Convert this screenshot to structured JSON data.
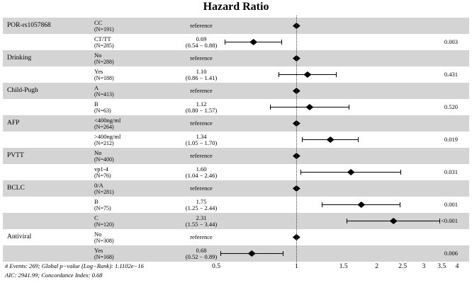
{
  "chart_data": {
    "type": "forest",
    "title": "Hazard Ratio",
    "x_scale": "log",
    "xlim": [
      0.5,
      4
    ],
    "x_ticks": [
      "0.5",
      "1",
      "1.5",
      "2",
      "2.5",
      "3",
      "3.5",
      "4"
    ],
    "x_tick_values": [
      0.5,
      1,
      1.5,
      2,
      2.5,
      3,
      3.5,
      4
    ],
    "reference_line": 1,
    "band_color": "#d4d4d4",
    "marker_color": "#000000",
    "rows": [
      {
        "variable": "POR-rs1057868",
        "level": "CC",
        "n": "(N=191)",
        "estimate_text": "reference",
        "ci_text": "",
        "hr": 1,
        "lo": null,
        "hi": null,
        "p": ""
      },
      {
        "variable": "",
        "level": "CT/TT",
        "n": "(N=285)",
        "estimate_text": "0.69",
        "ci_text": "(0.54 − 0.88)",
        "hr": 0.69,
        "lo": 0.54,
        "hi": 0.88,
        "p": "0.003"
      },
      {
        "variable": "Drinking",
        "level": "No",
        "n": "(N=288)",
        "estimate_text": "reference",
        "ci_text": "",
        "hr": 1,
        "lo": null,
        "hi": null,
        "p": ""
      },
      {
        "variable": "",
        "level": "Yes",
        "n": "(N=188)",
        "estimate_text": "1.10",
        "ci_text": "(0.86 − 1.41)",
        "hr": 1.1,
        "lo": 0.86,
        "hi": 1.41,
        "p": "0.431"
      },
      {
        "variable": "Child-Pugh",
        "level": "A",
        "n": "(N=413)",
        "estimate_text": "reference",
        "ci_text": "",
        "hr": 1,
        "lo": null,
        "hi": null,
        "p": ""
      },
      {
        "variable": "",
        "level": "B",
        "n": "(N=63)",
        "estimate_text": "1.12",
        "ci_text": "(0.80 − 1.57)",
        "hr": 1.12,
        "lo": 0.8,
        "hi": 1.57,
        "p": "0.520"
      },
      {
        "variable": "AFP",
        "level": "<400ng/ml",
        "n": "(N=264)",
        "estimate_text": "reference",
        "ci_text": "",
        "hr": 1,
        "lo": null,
        "hi": null,
        "p": ""
      },
      {
        "variable": "",
        "level": ">400ng/ml",
        "n": "(N=212)",
        "estimate_text": "1.34",
        "ci_text": "(1.05 − 1.70)",
        "hr": 1.34,
        "lo": 1.05,
        "hi": 1.7,
        "p": "0.019"
      },
      {
        "variable": "PVTT",
        "level": "No",
        "n": "(N=400)",
        "estimate_text": "reference",
        "ci_text": "",
        "hr": 1,
        "lo": null,
        "hi": null,
        "p": ""
      },
      {
        "variable": "",
        "level": "vp1-4",
        "n": "(N=76)",
        "estimate_text": "1.60",
        "ci_text": "(1.04 − 2.46)",
        "hr": 1.6,
        "lo": 1.04,
        "hi": 2.46,
        "p": "0.031"
      },
      {
        "variable": "BCLC",
        "level": "0/A",
        "n": "(N=281)",
        "estimate_text": "reference",
        "ci_text": "",
        "hr": 1,
        "lo": null,
        "hi": null,
        "p": ""
      },
      {
        "variable": "",
        "level": "B",
        "n": "(N=75)",
        "estimate_text": "1.75",
        "ci_text": "(1.25 − 2.44)",
        "hr": 1.75,
        "lo": 1.25,
        "hi": 2.44,
        "p": "0.001"
      },
      {
        "variable": "",
        "level": "C",
        "n": "(N=120)",
        "estimate_text": "2.31",
        "ci_text": "(1.55 − 3.44)",
        "hr": 2.31,
        "lo": 1.55,
        "hi": 3.44,
        "p": "<0.001"
      },
      {
        "variable": "Antiviral",
        "level": "No",
        "n": "(N=308)",
        "estimate_text": "reference",
        "ci_text": "",
        "hr": 1,
        "lo": null,
        "hi": null,
        "p": ""
      },
      {
        "variable": "",
        "level": "Yes",
        "n": "(N=168)",
        "estimate_text": "0.68",
        "ci_text": "(0.52 − 0.89)",
        "hr": 0.68,
        "lo": 0.52,
        "hi": 0.89,
        "p": "0.006"
      }
    ],
    "footnotes": [
      "# Events: 269; Global p−value (Log−Rank): 1.1102e−16",
      "AIC: 2941.99; Concordance Index: 0.68"
    ]
  }
}
